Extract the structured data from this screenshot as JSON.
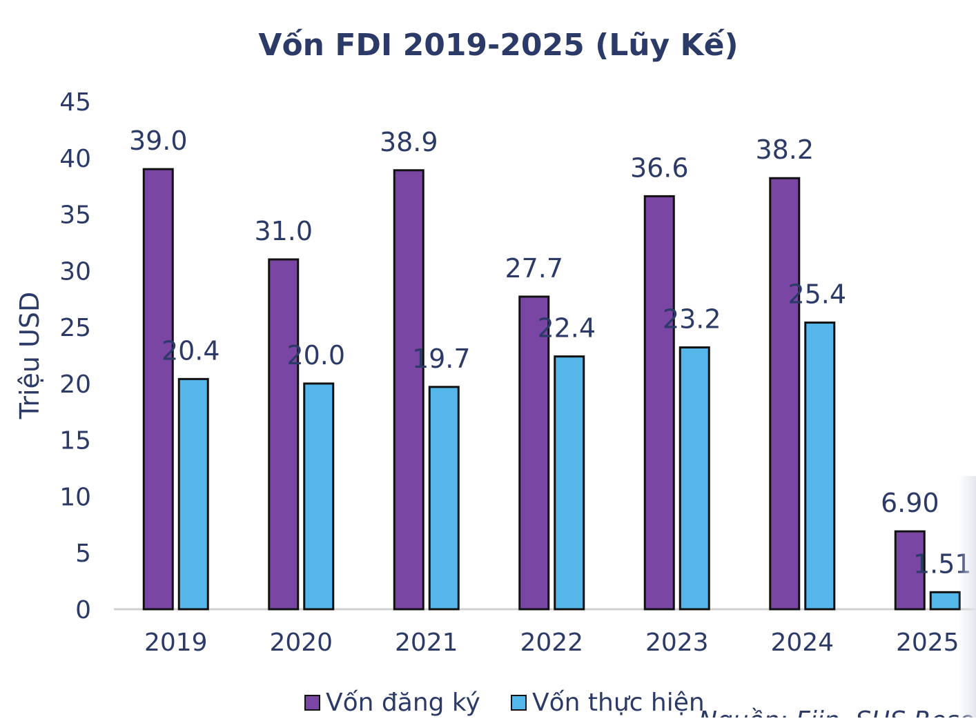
{
  "colors": {
    "registered": "#7A46A3",
    "disbursed": "#55B6EA",
    "text": "#2B3A67",
    "axis": "#D0D0D0"
  },
  "chart_data": {
    "type": "bar",
    "title": "Vốn FDI 2019-2025 (Lũy Kế)",
    "xlabel": "",
    "ylabel": "Triệu USD",
    "ylim": [
      0,
      45
    ],
    "yticks": [
      "0",
      "5",
      "10",
      "15",
      "20",
      "25",
      "30",
      "35",
      "40",
      "45"
    ],
    "categories": [
      "2019",
      "2020",
      "2021",
      "2022",
      "2023",
      "2024",
      "2025"
    ],
    "series": [
      {
        "name": "Vốn đăng ký",
        "values": [
          39.0,
          31.0,
          38.9,
          27.7,
          36.6,
          38.2,
          6.9
        ],
        "labels": [
          "39.0",
          "31.0",
          "38.9",
          "27.7",
          "36.6",
          "38.2",
          "6.90"
        ]
      },
      {
        "name": "Vốn thực hiện",
        "values": [
          20.4,
          20.0,
          19.7,
          22.4,
          23.2,
          25.4,
          1.51
        ],
        "labels": [
          "20.4",
          "20.0",
          "19.7",
          "22.4",
          "23.2",
          "25.4",
          "1.51"
        ]
      }
    ],
    "legend": {
      "position": "bottom",
      "items": [
        "Vốn đăng ký",
        "Vốn thực hiện"
      ]
    },
    "source_note": "Nguồn: Fiin, SHS Resea"
  }
}
